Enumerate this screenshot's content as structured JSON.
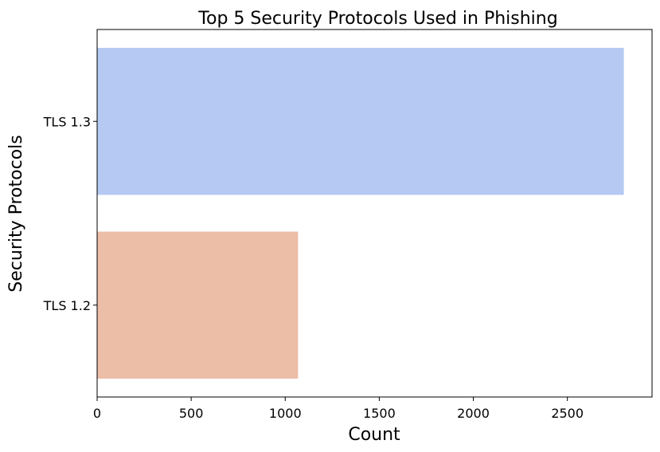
{
  "chart_data": {
    "type": "bar",
    "orientation": "horizontal",
    "title": "Top 5 Security Protocols Used in Phishing",
    "xlabel": "Count",
    "ylabel": "Security Protocols",
    "categories": [
      "TLS 1.3",
      "TLS 1.2"
    ],
    "values": [
      2800,
      1068
    ],
    "colors": [
      "#b5c9f3",
      "#ecbda7"
    ],
    "xlim": [
      0,
      2950
    ],
    "xticks": [
      0,
      500,
      1000,
      1500,
      2000,
      2500
    ],
    "grid": false,
    "legend": "none"
  }
}
